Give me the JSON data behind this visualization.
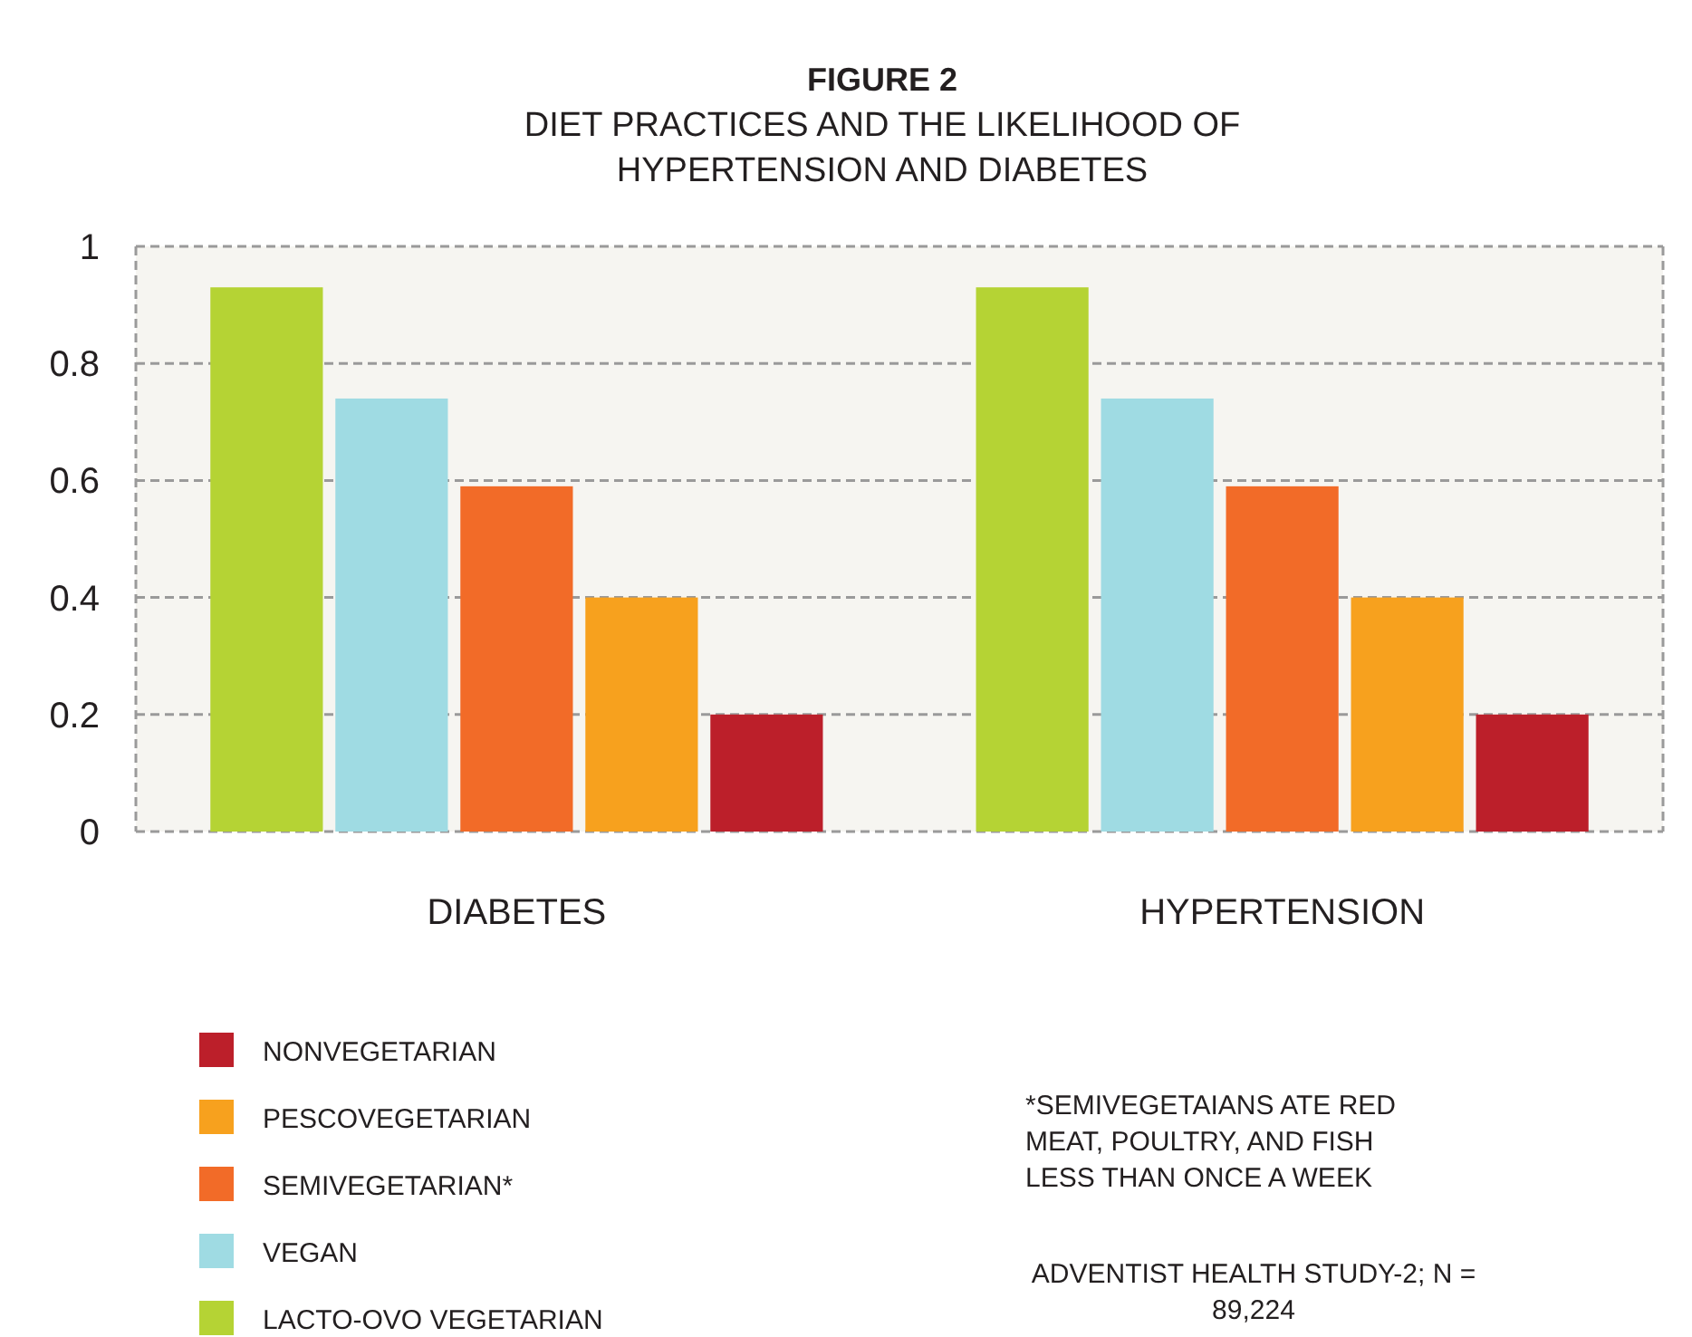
{
  "chart_data": {
    "type": "bar",
    "title": "FIGURE 2",
    "subtitle": "DIET PRACTICES AND THE LIKELIHOOD OF HYPERTENSION AND DIABETES",
    "categories": [
      "DIABETES",
      "HYPERTENSION"
    ],
    "series": [
      {
        "name": "LACTO-OVO VEGETARIAN",
        "color": "#b5d334",
        "values": [
          0.93,
          0.93
        ]
      },
      {
        "name": "VEGAN",
        "color": "#9fdbe3",
        "values": [
          0.74,
          0.74
        ]
      },
      {
        "name": "SEMIVEGETARIAN*",
        "color": "#f26b28",
        "values": [
          0.59,
          0.59
        ]
      },
      {
        "name": "PESCOVEGETARIAN",
        "color": "#f7a11e",
        "values": [
          0.4,
          0.4
        ]
      },
      {
        "name": "NONVEGETARIAN",
        "color": "#bc1f2a",
        "values": [
          0.2,
          0.2
        ]
      }
    ],
    "ylim": [
      0,
      1
    ],
    "yticks": [
      0,
      {
        "value": 0.2,
        "label": "0.2"
      },
      {
        "value": 0.4,
        "label": "0.4"
      },
      {
        "value": 0.6,
        "label": "0.6"
      },
      {
        "value": 0.8,
        "label": "0.8"
      },
      1
    ],
    "grid": "y",
    "legend": "bottom left",
    "annotations": [
      "*SEMIVEGETAIANS ATE RED MEAT, POULTRY, AND FISH LESS THAN ONCE A WEEK",
      "ADVENTIST HEALTH STUDY-2; N = 89,224"
    ]
  }
}
